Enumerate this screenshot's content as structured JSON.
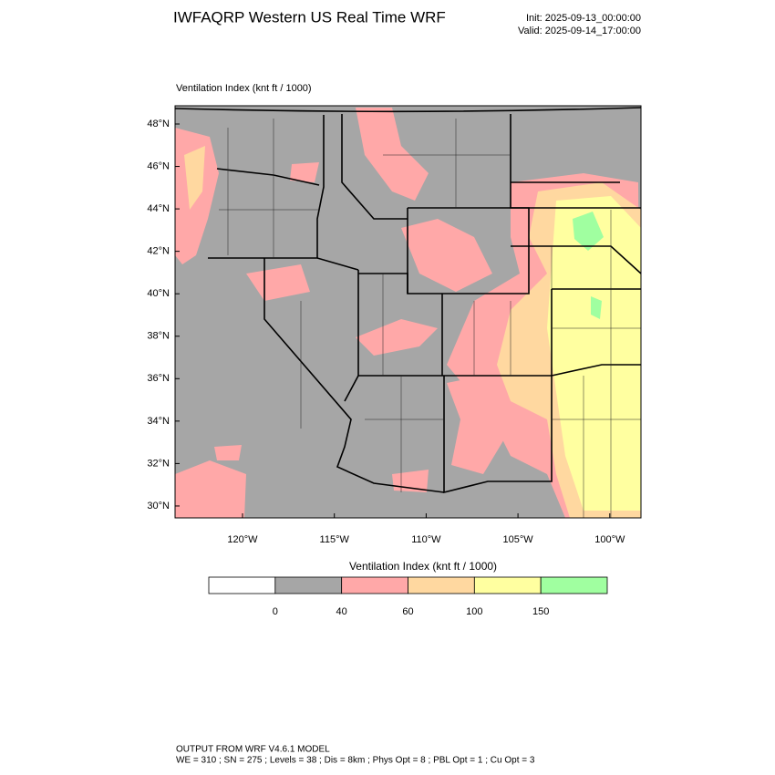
{
  "header": {
    "title": "IWFAQRP Western US Real Time WRF",
    "init": "Init: 2025-09-13_00:00:00",
    "valid": "Valid: 2025-09-14_17:00:00"
  },
  "map": {
    "subtitle": "Ventilation Index   (knt ft / 1000)",
    "lat_labels": [
      "48°N",
      "46°N",
      "44°N",
      "42°N",
      "40°N",
      "38°N",
      "36°N",
      "34°N",
      "32°N",
      "30°N"
    ],
    "lon_labels": [
      "120°W",
      "115°W",
      "110°W",
      "105°W",
      "100°W"
    ]
  },
  "colorbar": {
    "title": "Ventilation Index  (knt ft / 1000)",
    "colors": [
      "#ffffff",
      "#a6a6a6",
      "#ffa8a8",
      "#ffd8a0",
      "#ffffa0",
      "#a0ffa0"
    ],
    "labels": [
      0,
      40,
      60,
      100,
      150
    ]
  },
  "footer": {
    "line1": "OUTPUT FROM WRF V4.6.1 MODEL",
    "line2": "WE = 310 ; SN = 275 ; Levels = 38 ; Dis = 8km ; Phys Opt = 8 ; PBL Opt = 1 ; Cu Opt = 3"
  }
}
